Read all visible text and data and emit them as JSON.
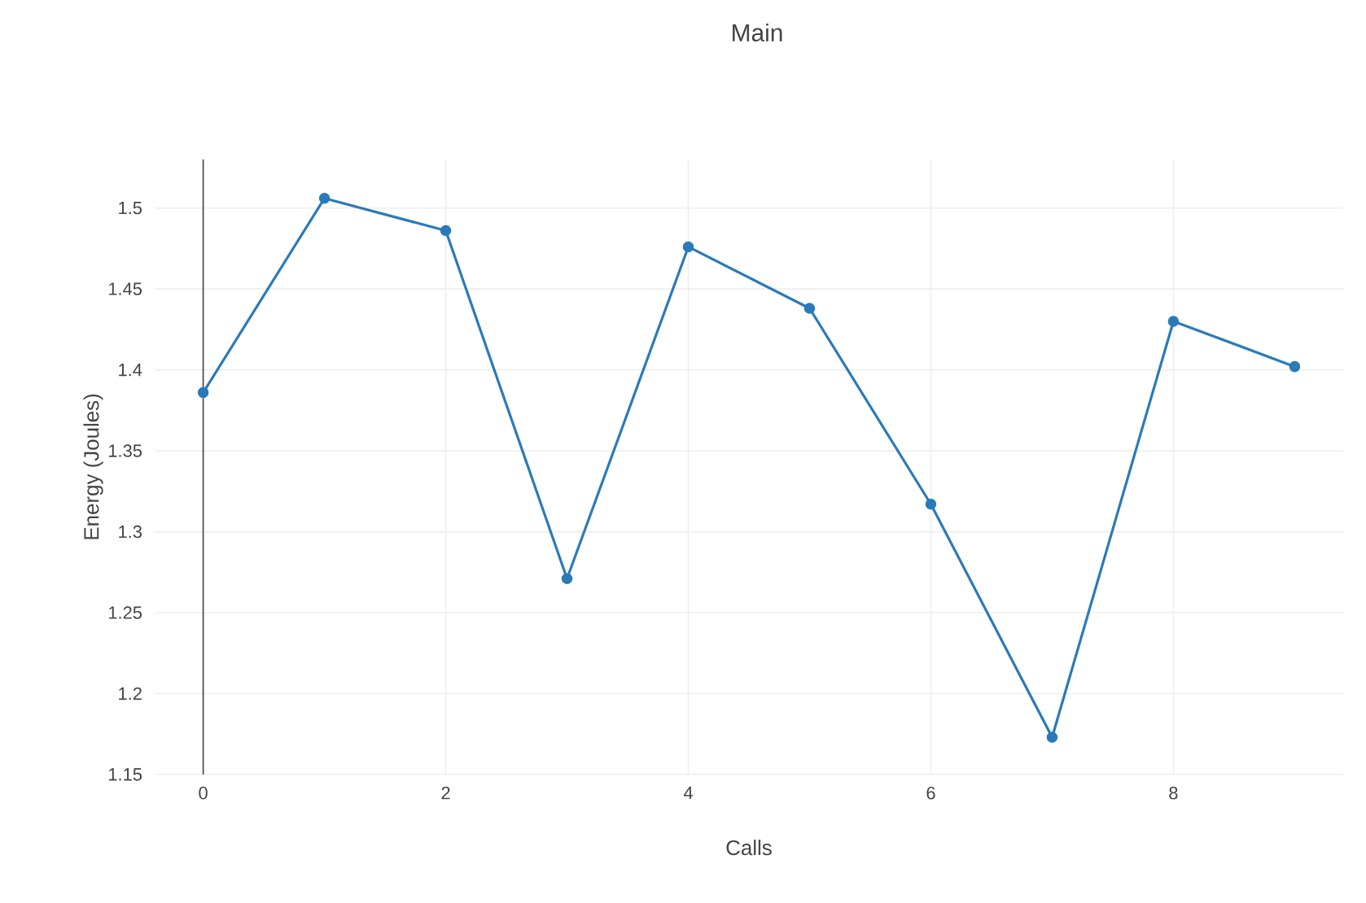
{
  "chart_data": {
    "type": "line",
    "title": "Main",
    "xlabel": "Calls",
    "ylabel": "Energy (Joules)",
    "x": [
      0,
      1,
      2,
      3,
      4,
      5,
      6,
      7,
      8,
      9
    ],
    "series": [
      {
        "color": "#2a7ab9",
        "values": [
          1.386,
          1.506,
          1.486,
          1.271,
          1.476,
          1.438,
          1.317,
          1.173,
          1.43,
          1.402
        ]
      }
    ],
    "xlim": [
      -0.4,
      9.4
    ],
    "ylim": [
      1.15,
      1.53
    ],
    "xticks": [
      0,
      2,
      4,
      6,
      8
    ],
    "yticks": [
      1.15,
      1.2,
      1.25,
      1.3,
      1.35,
      1.4,
      1.45,
      1.5
    ],
    "ref_lines": [
      {
        "axis": "x",
        "value": 0,
        "color": "#444444"
      }
    ],
    "grid": true,
    "marker": "circle",
    "line_style": "solid"
  }
}
